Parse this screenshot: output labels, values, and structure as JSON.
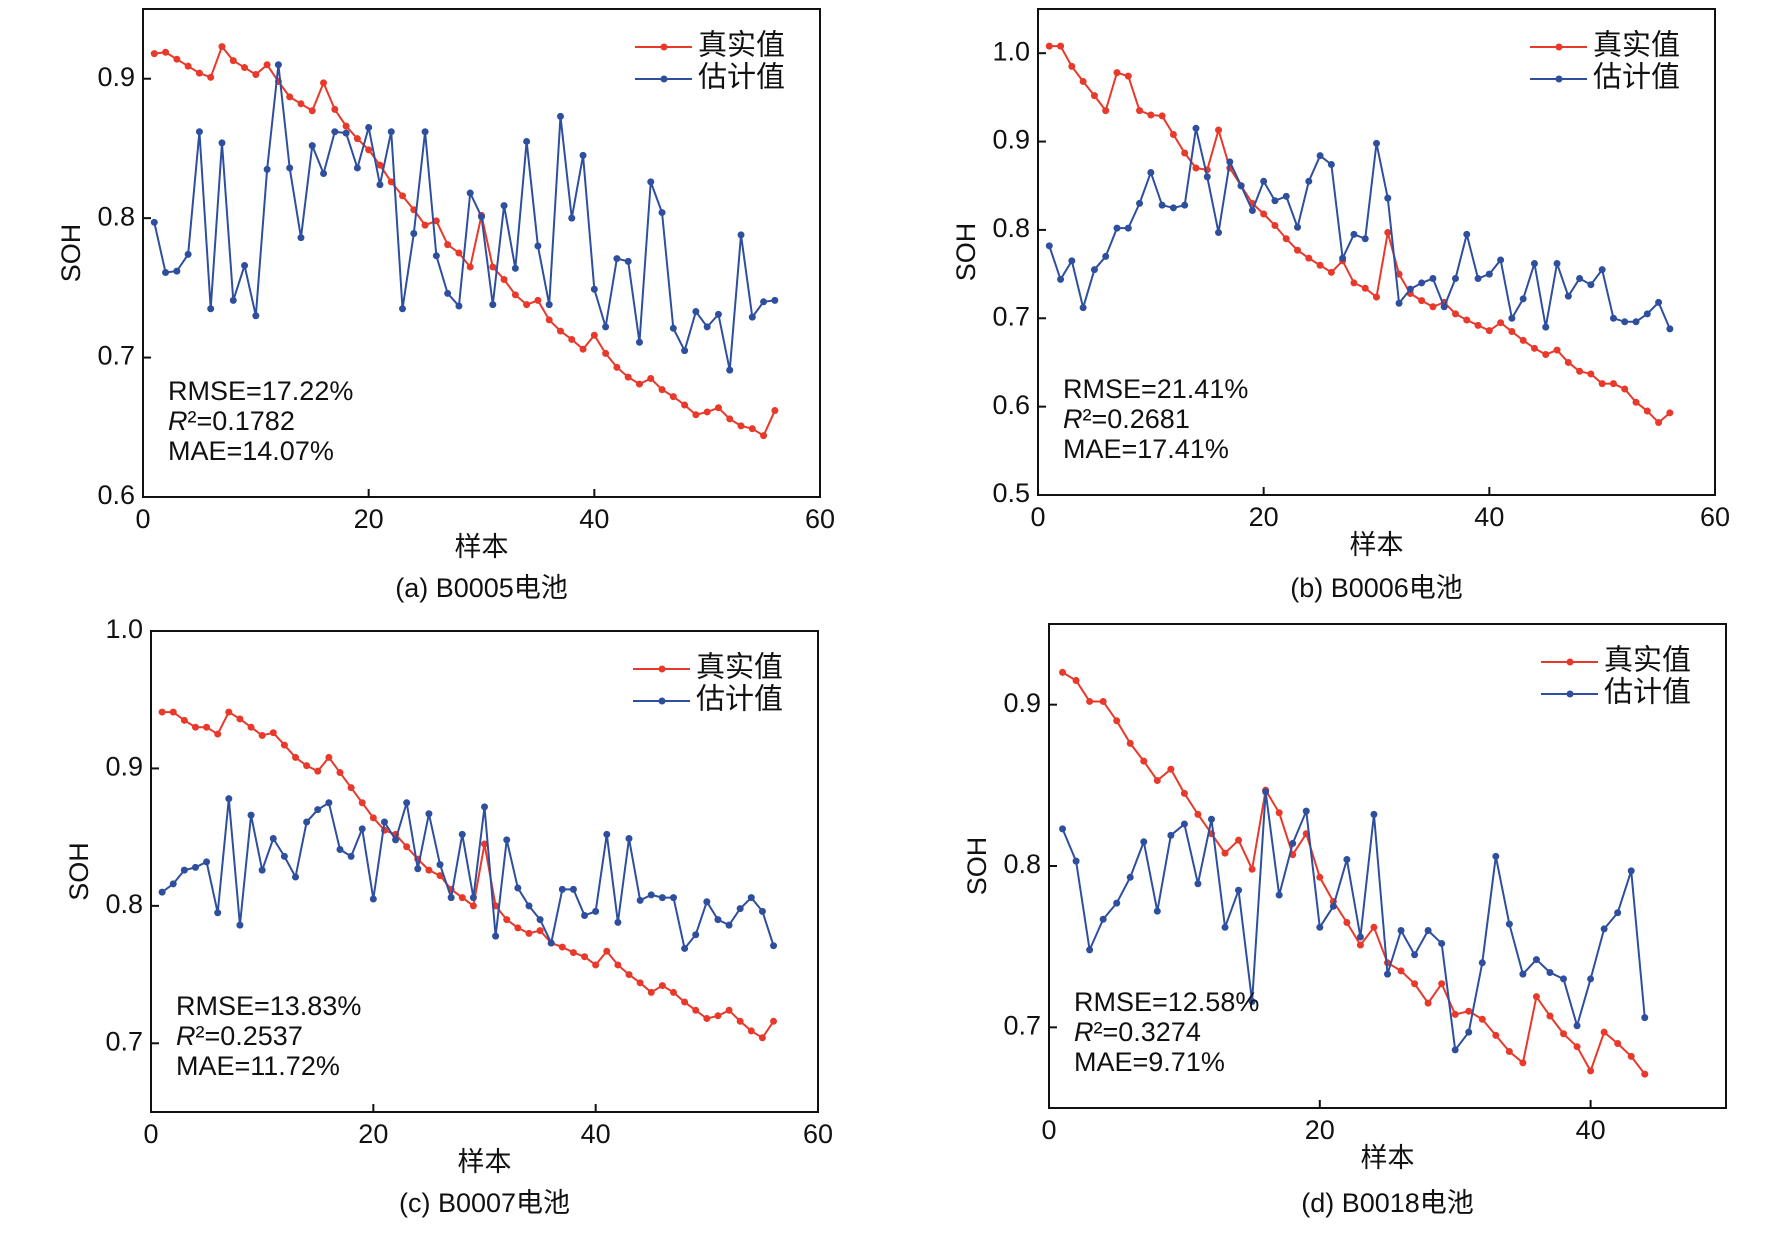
{
  "chart_data": [
    {
      "type": "line",
      "title": "(a) B0005电池",
      "xlabel": "样本",
      "ylabel": "SOH",
      "xlim": [
        0,
        60
      ],
      "xticks": [
        0,
        20,
        40,
        60
      ],
      "ylim": [
        0.6,
        0.95
      ],
      "yticks": [
        0.6,
        0.7,
        0.8,
        0.9
      ],
      "legend": "upper right",
      "annotations": [
        "RMSE=17.22%",
        "R²=0.1782",
        "MAE=14.07%"
      ],
      "x": [
        1,
        2,
        3,
        4,
        5,
        6,
        7,
        8,
        9,
        10,
        11,
        12,
        13,
        14,
        15,
        16,
        17,
        18,
        19,
        20,
        21,
        22,
        23,
        24,
        25,
        26,
        27,
        28,
        29,
        30,
        31,
        32,
        33,
        34,
        35,
        36,
        37,
        38,
        39,
        40,
        41,
        42,
        43,
        44,
        45,
        46,
        47,
        48,
        49,
        50,
        51,
        52,
        53,
        54,
        55,
        56
      ],
      "series": [
        {
          "name": "真实值",
          "color": "#e8392b",
          "values": [
            0.918,
            0.919,
            0.914,
            0.909,
            0.904,
            0.901,
            0.923,
            0.913,
            0.908,
            0.903,
            0.91,
            0.898,
            0.887,
            0.882,
            0.877,
            0.897,
            0.878,
            0.866,
            0.857,
            0.849,
            0.838,
            0.826,
            0.816,
            0.806,
            0.795,
            0.798,
            0.781,
            0.775,
            0.765,
            0.802,
            0.765,
            0.756,
            0.745,
            0.738,
            0.741,
            0.727,
            0.719,
            0.713,
            0.706,
            0.716,
            0.703,
            0.693,
            0.686,
            0.681,
            0.685,
            0.677,
            0.672,
            0.666,
            0.659,
            0.661,
            0.664,
            0.656,
            0.651,
            0.649,
            0.644,
            0.662
          ]
        },
        {
          "name": "估计值",
          "color": "#2e4f9e",
          "values": [
            0.797,
            0.761,
            0.762,
            0.774,
            0.862,
            0.735,
            0.854,
            0.741,
            0.766,
            0.73,
            0.835,
            0.91,
            0.836,
            0.786,
            0.852,
            0.832,
            0.862,
            0.861,
            0.836,
            0.865,
            0.824,
            0.862,
            0.735,
            0.789,
            0.862,
            0.773,
            0.746,
            0.737,
            0.818,
            0.801,
            0.738,
            0.809,
            0.764,
            0.855,
            0.78,
            0.738,
            0.873,
            0.8,
            0.845,
            0.749,
            0.722,
            0.771,
            0.769,
            0.711,
            0.826,
            0.804,
            0.721,
            0.705,
            0.733,
            0.722,
            0.731,
            0.691,
            0.788,
            0.729,
            0.74,
            0.741
          ]
        }
      ]
    },
    {
      "type": "line",
      "title": "(b) B0006电池",
      "xlabel": "样本",
      "ylabel": "SOH",
      "xlim": [
        0,
        60
      ],
      "xticks": [
        0,
        20,
        40,
        60
      ],
      "ylim": [
        0.5,
        1.05
      ],
      "yticks": [
        0.5,
        0.6,
        0.7,
        0.8,
        0.9,
        {
          "value": 1,
          "label": "1.0"
        }
      ],
      "legend": "upper right",
      "annotations": [
        "RMSE=21.41%",
        "R²=0.2681",
        "MAE=17.41%"
      ],
      "x": [
        1,
        2,
        3,
        4,
        5,
        6,
        7,
        8,
        9,
        10,
        11,
        12,
        13,
        14,
        15,
        16,
        17,
        18,
        19,
        20,
        21,
        22,
        23,
        24,
        25,
        26,
        27,
        28,
        29,
        30,
        31,
        32,
        33,
        34,
        35,
        36,
        37,
        38,
        39,
        40,
        41,
        42,
        43,
        44,
        45,
        46,
        47,
        48,
        49,
        50,
        51,
        52,
        53,
        54,
        55,
        56
      ],
      "series": [
        {
          "name": "真实值",
          "color": "#e8392b",
          "values": [
            1.008,
            1.008,
            0.985,
            0.968,
            0.952,
            0.935,
            0.978,
            0.974,
            0.935,
            0.93,
            0.929,
            0.908,
            0.887,
            0.87,
            0.868,
            0.913,
            0.87,
            0.85,
            0.83,
            0.818,
            0.805,
            0.79,
            0.777,
            0.768,
            0.76,
            0.752,
            0.765,
            0.74,
            0.734,
            0.724,
            0.797,
            0.75,
            0.728,
            0.72,
            0.713,
            0.718,
            0.705,
            0.698,
            0.692,
            0.686,
            0.695,
            0.685,
            0.675,
            0.666,
            0.659,
            0.664,
            0.65,
            0.64,
            0.637,
            0.626,
            0.626,
            0.62,
            0.605,
            0.595,
            0.582,
            0.593
          ]
        },
        {
          "name": "估计值",
          "color": "#2e4f9e",
          "values": [
            0.782,
            0.744,
            0.765,
            0.712,
            0.755,
            0.77,
            0.802,
            0.802,
            0.83,
            0.865,
            0.828,
            0.825,
            0.828,
            0.915,
            0.86,
            0.797,
            0.877,
            0.85,
            0.822,
            0.855,
            0.833,
            0.838,
            0.803,
            0.855,
            0.884,
            0.874,
            0.768,
            0.795,
            0.79,
            0.898,
            0.836,
            0.717,
            0.733,
            0.74,
            0.745,
            0.713,
            0.745,
            0.795,
            0.745,
            0.75,
            0.766,
            0.7,
            0.722,
            0.762,
            0.69,
            0.762,
            0.725,
            0.745,
            0.738,
            0.755,
            0.7,
            0.696,
            0.696,
            0.705,
            0.718,
            0.688
          ]
        }
      ]
    },
    {
      "type": "line",
      "title": "(c) B0007电池",
      "xlabel": "样本",
      "ylabel": "SOH",
      "xlim": [
        0,
        60
      ],
      "xticks": [
        0,
        20,
        40,
        60
      ],
      "ylim": [
        0.65,
        1.0
      ],
      "yticks": [
        0.7,
        0.8,
        0.9,
        {
          "value": 1,
          "label": "1.0"
        }
      ],
      "legend": "upper right",
      "annotations": [
        "RMSE=13.83%",
        "R²=0.2537",
        "MAE=11.72%"
      ],
      "x": [
        1,
        2,
        3,
        4,
        5,
        6,
        7,
        8,
        9,
        10,
        11,
        12,
        13,
        14,
        15,
        16,
        17,
        18,
        19,
        20,
        21,
        22,
        23,
        24,
        25,
        26,
        27,
        28,
        29,
        30,
        31,
        32,
        33,
        34,
        35,
        36,
        37,
        38,
        39,
        40,
        41,
        42,
        43,
        44,
        45,
        46,
        47,
        48,
        49,
        50,
        51,
        52,
        53,
        54,
        55,
        56
      ],
      "series": [
        {
          "name": "真实值",
          "color": "#e8392b",
          "values": [
            0.941,
            0.941,
            0.935,
            0.93,
            0.93,
            0.925,
            0.941,
            0.936,
            0.93,
            0.924,
            0.926,
            0.917,
            0.908,
            0.902,
            0.898,
            0.908,
            0.897,
            0.886,
            0.875,
            0.864,
            0.855,
            0.852,
            0.843,
            0.834,
            0.826,
            0.822,
            0.812,
            0.806,
            0.8,
            0.845,
            0.8,
            0.79,
            0.784,
            0.78,
            0.782,
            0.773,
            0.77,
            0.766,
            0.763,
            0.757,
            0.767,
            0.757,
            0.75,
            0.744,
            0.737,
            0.742,
            0.737,
            0.73,
            0.724,
            0.718,
            0.72,
            0.724,
            0.716,
            0.709,
            0.704,
            0.716
          ]
        },
        {
          "name": "估计值",
          "color": "#2e4f9e",
          "values": [
            0.81,
            0.816,
            0.826,
            0.828,
            0.832,
            0.795,
            0.878,
            0.786,
            0.866,
            0.826,
            0.849,
            0.836,
            0.821,
            0.861,
            0.87,
            0.875,
            0.841,
            0.836,
            0.856,
            0.805,
            0.861,
            0.848,
            0.875,
            0.827,
            0.867,
            0.83,
            0.806,
            0.852,
            0.806,
            0.872,
            0.778,
            0.848,
            0.813,
            0.8,
            0.79,
            0.773,
            0.812,
            0.812,
            0.793,
            0.796,
            0.852,
            0.788,
            0.849,
            0.804,
            0.808,
            0.806,
            0.806,
            0.769,
            0.779,
            0.803,
            0.79,
            0.786,
            0.798,
            0.806,
            0.796,
            0.771
          ]
        }
      ]
    },
    {
      "type": "line",
      "title": "(d) B0018电池",
      "xlabel": "样本",
      "ylabel": "SOH",
      "xlim": [
        0,
        50
      ],
      "xticks": [
        0,
        20,
        40
      ],
      "ylim": [
        0.65,
        0.95
      ],
      "yticks": [
        0.7,
        0.8,
        0.9
      ],
      "legend": "upper right",
      "annotations": [
        "RMSE=12.58%",
        "R²=0.3274",
        "MAE=9.71%"
      ],
      "x": [
        1,
        2,
        3,
        4,
        5,
        6,
        7,
        8,
        9,
        10,
        11,
        12,
        13,
        14,
        15,
        16,
        17,
        18,
        19,
        20,
        21,
        22,
        23,
        24,
        25,
        26,
        27,
        28,
        29,
        30,
        31,
        32,
        33,
        34,
        35,
        36,
        37,
        38,
        39,
        40,
        41,
        42,
        43,
        44
      ],
      "series": [
        {
          "name": "真实值",
          "color": "#e8392b",
          "values": [
            0.92,
            0.915,
            0.902,
            0.902,
            0.89,
            0.876,
            0.865,
            0.853,
            0.86,
            0.845,
            0.832,
            0.82,
            0.808,
            0.816,
            0.798,
            0.847,
            0.833,
            0.807,
            0.82,
            0.793,
            0.778,
            0.765,
            0.751,
            0.762,
            0.74,
            0.735,
            0.727,
            0.715,
            0.727,
            0.708,
            0.71,
            0.705,
            0.695,
            0.685,
            0.678,
            0.719,
            0.707,
            0.696,
            0.688,
            0.673,
            0.697,
            0.69,
            0.682,
            0.671
          ]
        },
        {
          "name": "估计值",
          "color": "#2e4f9e",
          "values": [
            0.823,
            0.803,
            0.748,
            0.767,
            0.777,
            0.793,
            0.815,
            0.772,
            0.819,
            0.826,
            0.789,
            0.829,
            0.762,
            0.785,
            0.716,
            0.846,
            0.782,
            0.814,
            0.834,
            0.762,
            0.775,
            0.804,
            0.756,
            0.832,
            0.733,
            0.76,
            0.745,
            0.76,
            0.752,
            0.686,
            0.697,
            0.74,
            0.806,
            0.764,
            0.733,
            0.742,
            0.734,
            0.73,
            0.701,
            0.73,
            0.761,
            0.771,
            0.797,
            0.706
          ]
        }
      ]
    }
  ]
}
